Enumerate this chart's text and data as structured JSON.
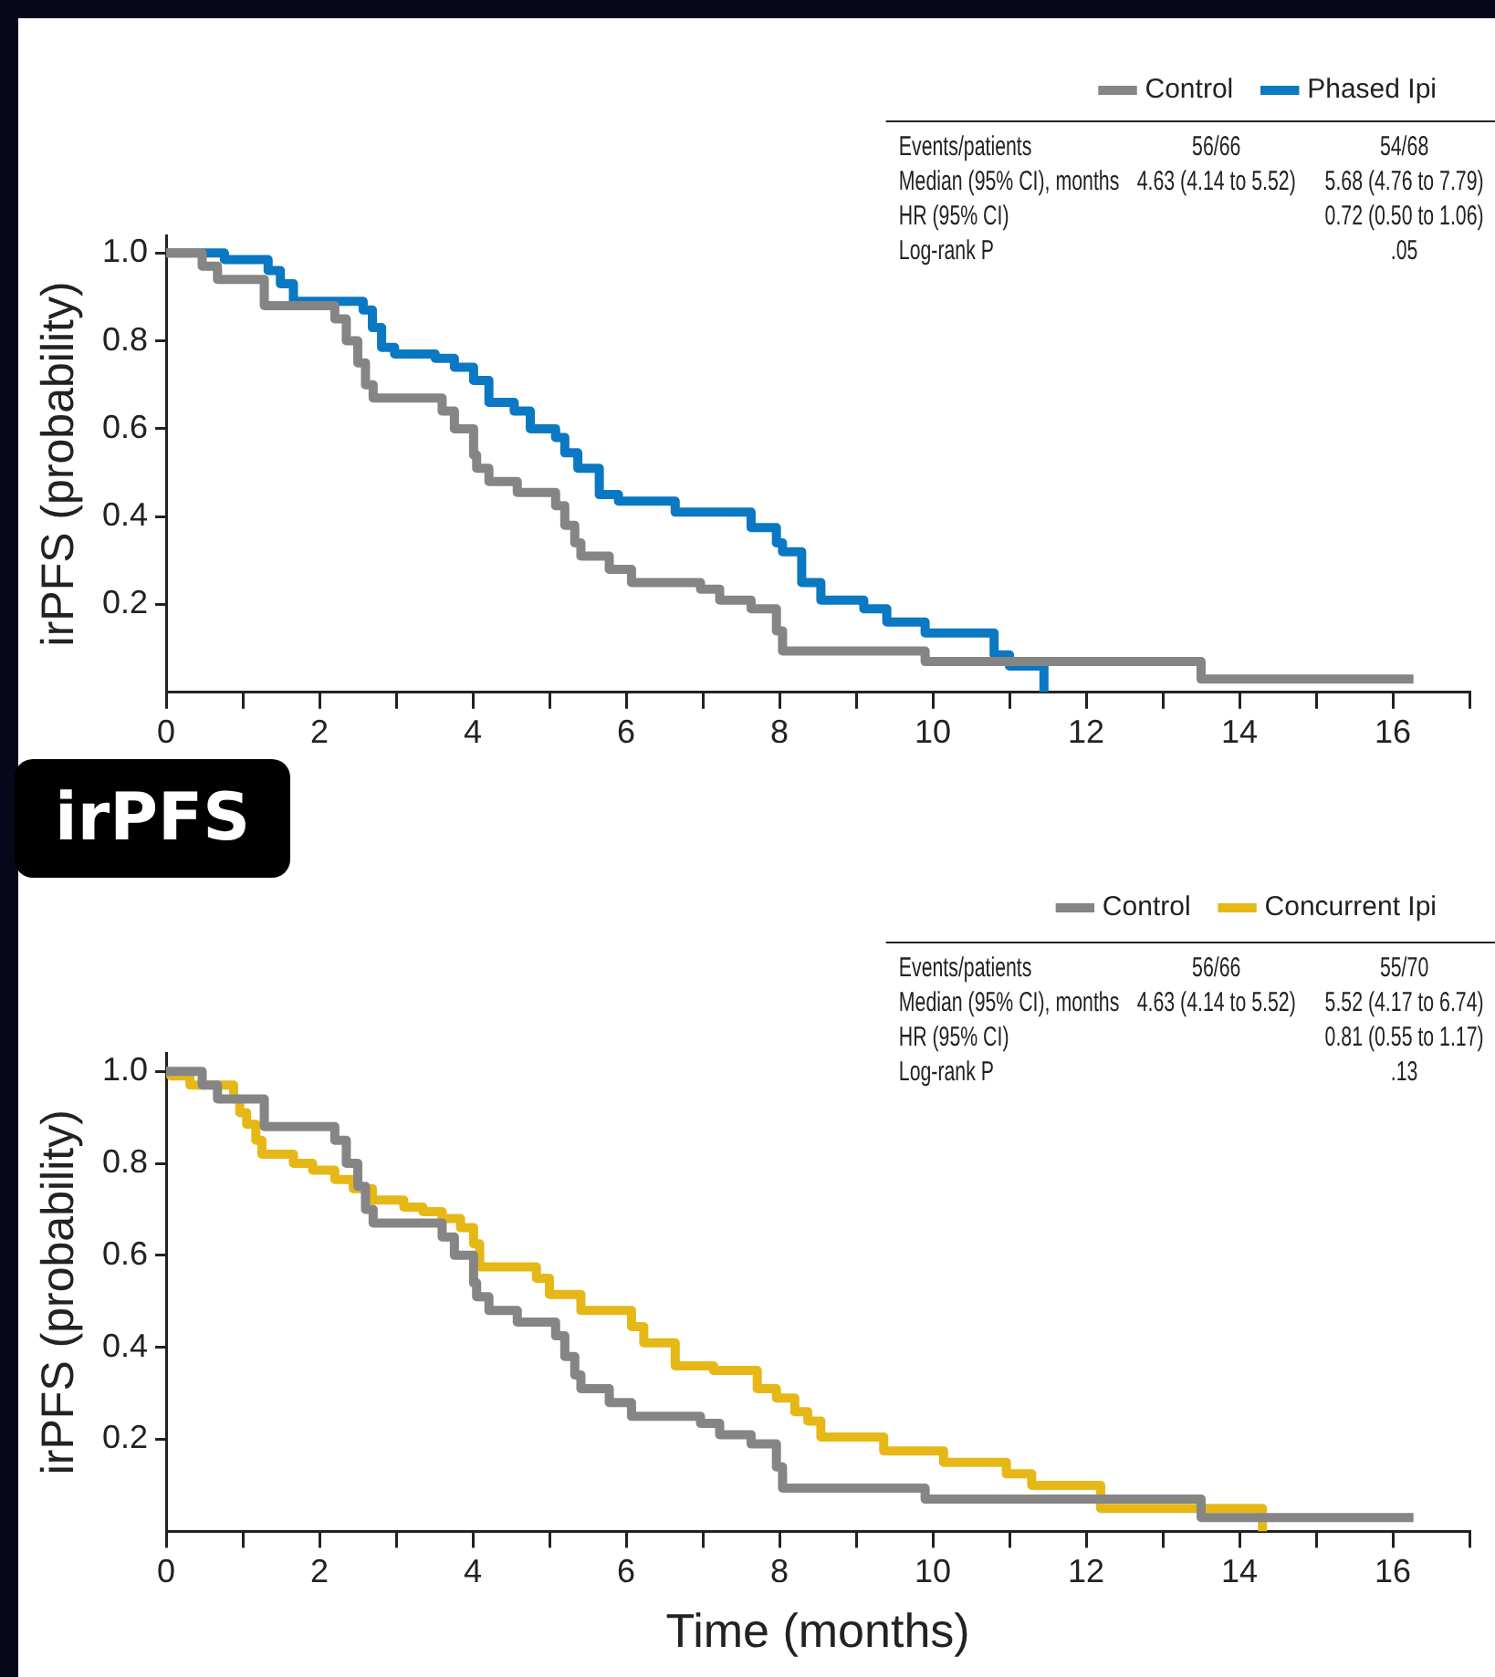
{
  "chart_data": [
    {
      "type": "step",
      "ylabel": "irPFS (probability)",
      "legend": "top right",
      "grid": false,
      "line_style": "solid",
      "xlim": [
        0,
        17
      ],
      "xticks": [
        0,
        {
          "value": 1,
          "label": null
        },
        2,
        {
          "value": 3,
          "label": null
        },
        4,
        {
          "value": 5,
          "label": null
        },
        6,
        {
          "value": 7,
          "label": null
        },
        8,
        {
          "value": 9,
          "label": null
        },
        10,
        {
          "value": 11,
          "label": null
        },
        12,
        {
          "value": 13,
          "label": null
        },
        14,
        {
          "value": 15,
          "label": null
        },
        16,
        {
          "value": 17,
          "label": null
        }
      ],
      "ylim": [
        0,
        1.04
      ],
      "yticks": [
        0.2,
        0.4,
        0.6,
        0.8,
        {
          "value": 1,
          "label": "1.0"
        }
      ],
      "series": [
        {
          "name": "Control",
          "color": "#858585",
          "x": [
            0,
            0.47,
            0.67,
            1.28,
            2.2,
            2.35,
            2.5,
            2.6,
            2.7,
            3.6,
            3.76,
            4.01,
            4.05,
            4.21,
            4.58,
            5.08,
            5.2,
            5.33,
            5.41,
            5.78,
            6.07,
            6.97,
            7.22,
            7.63,
            7.96,
            8.04,
            8.17,
            9.9,
            13.5,
            16.27
          ],
          "values": [
            1,
            0.97,
            0.94,
            0.88,
            0.85,
            0.8,
            0.75,
            0.7,
            0.67,
            0.64,
            0.6,
            0.54,
            0.51,
            0.48,
            0.455,
            0.425,
            0.38,
            0.34,
            0.31,
            0.28,
            0.25,
            0.235,
            0.21,
            0.19,
            0.14,
            0.094,
            0.094,
            0.07,
            0.03,
            0.03
          ]
        },
        {
          "name": "Phased Ipi",
          "color": "#0a78c2",
          "x": [
            0,
            0.76,
            1.33,
            1.49,
            1.66,
            2.57,
            2.69,
            2.81,
            2.98,
            3.51,
            3.76,
            4.01,
            4.21,
            4.54,
            4.75,
            5.08,
            5.2,
            5.37,
            5.65,
            5.9,
            6.64,
            7.63,
            7.96,
            8.04,
            8.29,
            8.54,
            9.1,
            9.4,
            9.9,
            10.8,
            11.0,
            11.45
          ],
          "values": [
            1,
            0.985,
            0.96,
            0.93,
            0.89,
            0.87,
            0.83,
            0.785,
            0.77,
            0.76,
            0.74,
            0.71,
            0.66,
            0.64,
            0.6,
            0.58,
            0.545,
            0.51,
            0.45,
            0.435,
            0.41,
            0.375,
            0.34,
            0.32,
            0.25,
            0.21,
            0.19,
            0.16,
            0.135,
            0.085,
            0.06,
            0
          ]
        }
      ],
      "annotations": [
        "Events/patients",
        "Median (95% CI), months",
        "HR (95% CI)",
        "Log-rank P",
        "56/66",
        "4.63 (4.14 to 5.52)",
        "54/68",
        "5.68 (4.76 to 7.79)",
        "0.72 (0.50 to 1.06)",
        ".05"
      ]
    },
    {
      "type": "step",
      "title": "irPFS",
      "xlabel": "Time (months)",
      "ylabel": "irPFS (probability)",
      "legend": "top right",
      "grid": false,
      "line_style": "solid",
      "xlim": [
        0,
        17
      ],
      "xticks": [
        0,
        {
          "value": 1,
          "label": null
        },
        2,
        {
          "value": 3,
          "label": null
        },
        4,
        {
          "value": 5,
          "label": null
        },
        6,
        {
          "value": 7,
          "label": null
        },
        8,
        {
          "value": 9,
          "label": null
        },
        10,
        {
          "value": 11,
          "label": null
        },
        12,
        {
          "value": 13,
          "label": null
        },
        14,
        {
          "value": 15,
          "label": null
        },
        16,
        {
          "value": 17,
          "label": null
        }
      ],
      "ylim": [
        0,
        1.04
      ],
      "yticks": [
        0.2,
        0.4,
        0.6,
        0.8,
        {
          "value": 1,
          "label": "1.0"
        }
      ],
      "series": [
        {
          "name": "Control",
          "color": "#858585",
          "x": [
            0,
            0.47,
            0.67,
            1.28,
            2.2,
            2.35,
            2.5,
            2.6,
            2.7,
            3.6,
            3.76,
            4.01,
            4.05,
            4.21,
            4.58,
            5.08,
            5.2,
            5.33,
            5.41,
            5.78,
            6.07,
            6.97,
            7.22,
            7.63,
            7.96,
            8.04,
            8.17,
            9.9,
            13.5,
            16.27
          ],
          "values": [
            1,
            0.97,
            0.94,
            0.88,
            0.85,
            0.8,
            0.75,
            0.7,
            0.67,
            0.64,
            0.6,
            0.54,
            0.51,
            0.48,
            0.455,
            0.425,
            0.38,
            0.34,
            0.31,
            0.28,
            0.25,
            0.235,
            0.21,
            0.19,
            0.14,
            0.094,
            0.094,
            0.07,
            0.03,
            0.03
          ]
        },
        {
          "name": "Concurrent Ipi",
          "color": "#e6b817",
          "x": [
            0,
            0.06,
            0.31,
            0.88,
            0.96,
            1.05,
            1.17,
            1.25,
            1.66,
            1.91,
            2.2,
            2.44,
            2.69,
            3.1,
            3.35,
            3.6,
            3.84,
            4.01,
            4.09,
            4.83,
            5.0,
            5.41,
            6.07,
            6.23,
            6.64,
            7.14,
            7.71,
            7.96,
            8.2,
            8.37,
            8.54,
            9.36,
            10.14,
            10.96,
            11.29,
            12.19,
            14.3
          ],
          "values": [
            1,
            0.99,
            0.97,
            0.94,
            0.91,
            0.885,
            0.85,
            0.82,
            0.8,
            0.785,
            0.765,
            0.745,
            0.72,
            0.705,
            0.695,
            0.68,
            0.66,
            0.625,
            0.575,
            0.55,
            0.515,
            0.48,
            0.445,
            0.41,
            0.36,
            0.35,
            0.31,
            0.29,
            0.26,
            0.24,
            0.205,
            0.175,
            0.15,
            0.125,
            0.1,
            0.05,
            0
          ]
        }
      ],
      "annotations": [
        "Events/patients",
        "Median (95% CI), months",
        "HR (95% CI)",
        "Log-rank P",
        "56/66",
        "4.63 (4.14 to 5.52)",
        "55/70",
        "5.52 (4.17 to 6.74)",
        "0.81 (0.55 to 1.17)",
        ".13"
      ]
    }
  ]
}
